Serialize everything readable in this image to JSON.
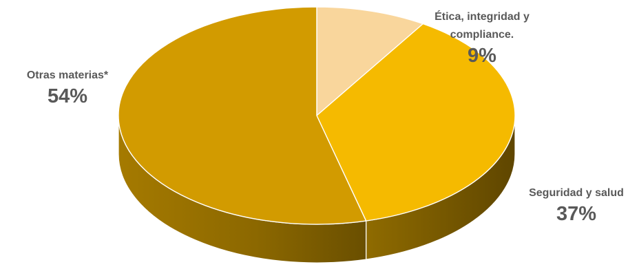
{
  "chart_data": {
    "type": "pie",
    "style": "3d",
    "slices": [
      {
        "label": "Ética, integridad y compliance.",
        "value": 9,
        "value_label": "9%",
        "color": "#F9D69C"
      },
      {
        "label": "Seguridad y salud",
        "value": 37,
        "value_label": "37%",
        "color": "#F5BA00"
      },
      {
        "label": "Otras materias*",
        "value": 54,
        "value_label": "54%",
        "color": "#D29B00"
      }
    ]
  }
}
